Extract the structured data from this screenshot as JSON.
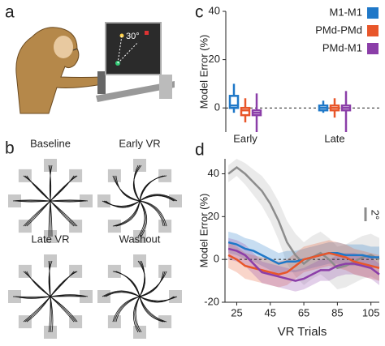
{
  "panel_labels": [
    "a",
    "b",
    "c",
    "d"
  ],
  "illustration": {
    "angle_label": "30°"
  },
  "trajectories": {
    "titles": [
      "Baseline",
      "Early VR",
      "Late VR",
      "Washout"
    ]
  },
  "chart_data": [
    {
      "type": "box",
      "ylabel": "Model Error (%)",
      "categories": [
        "Early",
        "Late"
      ],
      "ylim": [
        -10,
        40
      ],
      "yticks": [
        0,
        20,
        40
      ],
      "zero_line": true,
      "legend": "top-right",
      "series": [
        {
          "name": "M1-M1",
          "color": "#1f78c8",
          "low": [
            -2,
            -2
          ],
          "q1": [
            0,
            -1
          ],
          "median": [
            1,
            0
          ],
          "q3": [
            5,
            1
          ],
          "high": [
            10,
            3
          ]
        },
        {
          "name": "PMd-PMd",
          "color": "#e8562a",
          "low": [
            -6,
            -4
          ],
          "q1": [
            -3,
            -1
          ],
          "median": [
            -1,
            0
          ],
          "q3": [
            0,
            1
          ],
          "high": [
            4,
            4
          ]
        },
        {
          "name": "PMd-M1",
          "color": "#8b3ea8",
          "low": [
            -10,
            -10
          ],
          "q1": [
            -3,
            -1
          ],
          "median": [
            -2,
            0
          ],
          "q3": [
            -1,
            1
          ],
          "high": [
            6,
            7
          ]
        }
      ]
    },
    {
      "type": "line",
      "ylabel": "Model Error (%)",
      "xlabel": "VR Trials",
      "scale_label": "2°",
      "xlim": [
        18,
        110
      ],
      "ylim": [
        -20,
        47
      ],
      "xticks": [
        25,
        45,
        65,
        85,
        105
      ],
      "yticks": [
        -20,
        0,
        20,
        40
      ],
      "zero_line": true,
      "x": [
        20,
        25,
        30,
        35,
        40,
        45,
        50,
        55,
        60,
        65,
        70,
        75,
        80,
        85,
        90,
        95,
        100,
        105,
        110
      ],
      "series": [
        {
          "color": "#8c8c8c",
          "values": [
            40,
            43,
            40,
            36,
            32,
            26,
            18,
            8,
            2,
            -2,
            1,
            3,
            0,
            -4,
            -3,
            -1,
            1,
            2,
            0
          ],
          "error": [
            4,
            4,
            5,
            6,
            7,
            8,
            9,
            10,
            10,
            10,
            10,
            10,
            10,
            10,
            10,
            10,
            10,
            10,
            10
          ]
        },
        {
          "name": "M1-M1",
          "color": "#1f78c8",
          "values": [
            8,
            7,
            5,
            4,
            2,
            0,
            -2,
            -1,
            -1,
            0,
            1,
            2,
            3,
            3,
            2,
            2,
            2,
            1,
            1
          ],
          "error": [
            5,
            5,
            5,
            5,
            5,
            5,
            5,
            5,
            5,
            5,
            5,
            5,
            5,
            5,
            5,
            5,
            5,
            5,
            5
          ]
        },
        {
          "name": "PMd-PMd",
          "color": "#e8562a",
          "values": [
            2,
            0,
            -3,
            -4,
            -5,
            -6,
            -7,
            -6,
            -3,
            0,
            1,
            2,
            3,
            2,
            1,
            -1,
            -2,
            -3,
            -4
          ],
          "error": [
            6,
            6,
            6,
            6,
            6,
            6,
            6,
            6,
            6,
            6,
            6,
            6,
            6,
            6,
            6,
            6,
            6,
            6,
            6
          ]
        },
        {
          "name": "PMd-M1",
          "color": "#8b3ea8",
          "values": [
            5,
            4,
            2,
            -2,
            -6,
            -7,
            -8,
            -9,
            -10,
            -9,
            -7,
            -5,
            -5,
            -3,
            -2,
            -2,
            -3,
            -4,
            -7
          ],
          "error": [
            5,
            5,
            5,
            5,
            5,
            5,
            5,
            5,
            5,
            5,
            5,
            5,
            5,
            5,
            5,
            5,
            5,
            5,
            5
          ]
        }
      ]
    }
  ]
}
